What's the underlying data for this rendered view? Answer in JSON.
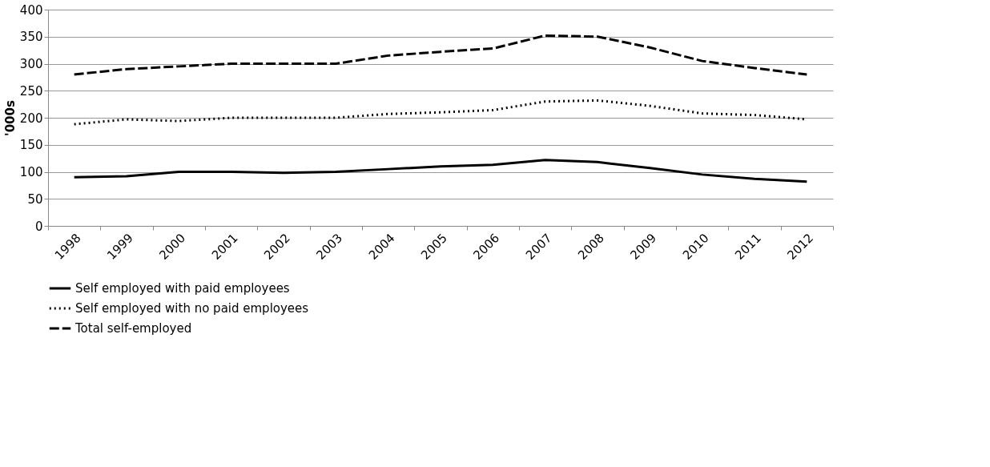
{
  "chart_data": {
    "type": "line",
    "ylabel": "'000s",
    "categories": [
      "1998",
      "1999",
      "2000",
      "2001",
      "2002",
      "2003",
      "2004",
      "2005",
      "2006",
      "2007",
      "2008",
      "2009",
      "2010",
      "2011",
      "2012"
    ],
    "series": [
      {
        "name": "Self employed with paid employees",
        "color": "#000000",
        "line_style": "solid",
        "values": [
          90,
          92,
          100,
          100,
          98,
          100,
          105,
          110,
          113,
          122,
          118,
          107,
          95,
          87,
          82
        ]
      },
      {
        "name": "Self employed with no paid employees",
        "color": "#000000",
        "line_style": "dotted",
        "values": [
          188,
          197,
          194,
          200,
          200,
          200,
          207,
          210,
          214,
          230,
          232,
          222,
          208,
          205,
          197
        ]
      },
      {
        "name": "Total self-employed",
        "color": "#000000",
        "line_style": "dashed",
        "values": [
          280,
          290,
          295,
          300,
          300,
          300,
          315,
          322,
          328,
          352,
          350,
          330,
          305,
          292,
          280
        ]
      }
    ],
    "ylim": [
      0,
      400
    ],
    "yticks": [
      0,
      50,
      100,
      150,
      200,
      250,
      300,
      350,
      400
    ],
    "grid": "y",
    "legend": "bottom",
    "marker": "none"
  }
}
